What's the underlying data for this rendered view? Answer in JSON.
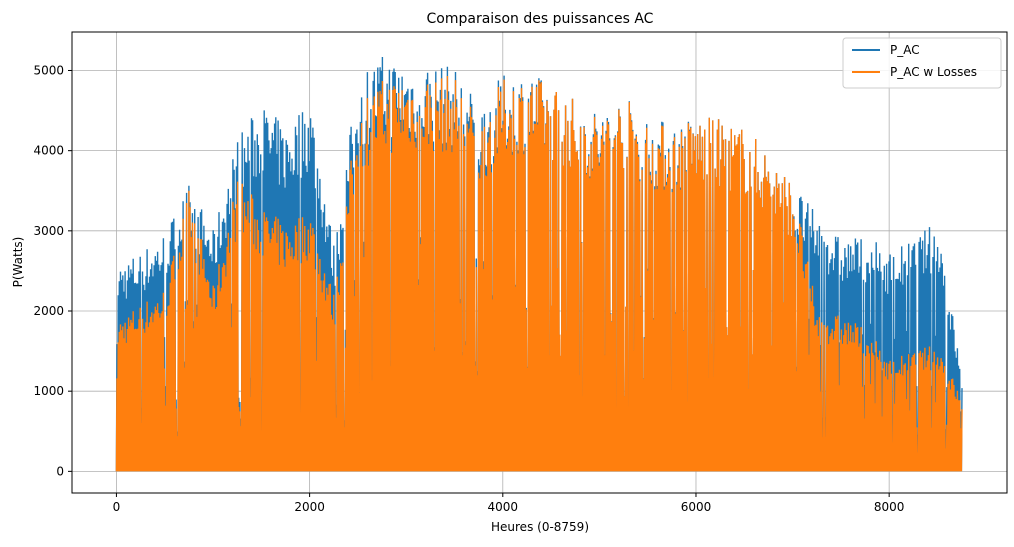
{
  "chart_data": {
    "type": "line",
    "title": "Comparaison des puissances AC",
    "xlabel": "Heures (0-8759)",
    "ylabel": "P(Watts)",
    "xlim": [
      -460,
      9220
    ],
    "ylim": [
      -270,
      5480
    ],
    "x_ticks": [
      0,
      2000,
      4000,
      6000,
      8000
    ],
    "x_tick_labels": [
      "0",
      "2000",
      "4000",
      "6000",
      "8000"
    ],
    "y_ticks": [
      0,
      1000,
      2000,
      3000,
      4000,
      5000
    ],
    "y_tick_labels": [
      "0",
      "1000",
      "2000",
      "3000",
      "4000",
      "5000"
    ],
    "grid": true,
    "legend_position": "top-right",
    "series": [
      {
        "name": "P_AC",
        "color": "#1f77b4",
        "x": [
          0,
          250,
          500,
          750,
          1000,
          1250,
          1500,
          1750,
          2000,
          2250,
          2500,
          2750,
          3000,
          3250,
          3500,
          3750,
          4000,
          4250,
          4500,
          4750,
          5000,
          5250,
          5500,
          5750,
          6000,
          6250,
          6500,
          6750,
          7000,
          7250,
          7500,
          7750,
          8000,
          8250,
          8500,
          8750
        ],
        "values": [
          2600,
          2750,
          3000,
          3600,
          3000,
          4200,
          4600,
          4300,
          4700,
          2800,
          5000,
          5200,
          5150,
          5100,
          5050,
          4600,
          4950,
          5000,
          4850,
          4650,
          4500,
          4700,
          4450,
          4350,
          4450,
          4400,
          4300,
          4000,
          3600,
          3200,
          2900,
          2950,
          2750,
          2900,
          3150,
          1200
        ]
      },
      {
        "name": "P_AC w Losses",
        "color": "#ff7f0e",
        "x": [
          0,
          250,
          500,
          750,
          1000,
          1250,
          1500,
          1750,
          2000,
          2250,
          2500,
          2750,
          3000,
          3250,
          3500,
          3750,
          4000,
          4250,
          4500,
          4750,
          5000,
          5250,
          5500,
          5750,
          6000,
          6250,
          6500,
          6750,
          7000,
          7250,
          7500,
          7750,
          8000,
          8250,
          8500,
          8750
        ],
        "values": [
          1900,
          2100,
          2300,
          3550,
          2300,
          3700,
          3300,
          3100,
          3300,
          2200,
          4650,
          4900,
          5000,
          4950,
          4950,
          4400,
          4900,
          4950,
          4850,
          4650,
          4450,
          4700,
          4400,
          4300,
          4450,
          4400,
          4300,
          4000,
          3600,
          2000,
          1950,
          1800,
          1400,
          1500,
          1600,
          900
        ]
      }
    ]
  }
}
